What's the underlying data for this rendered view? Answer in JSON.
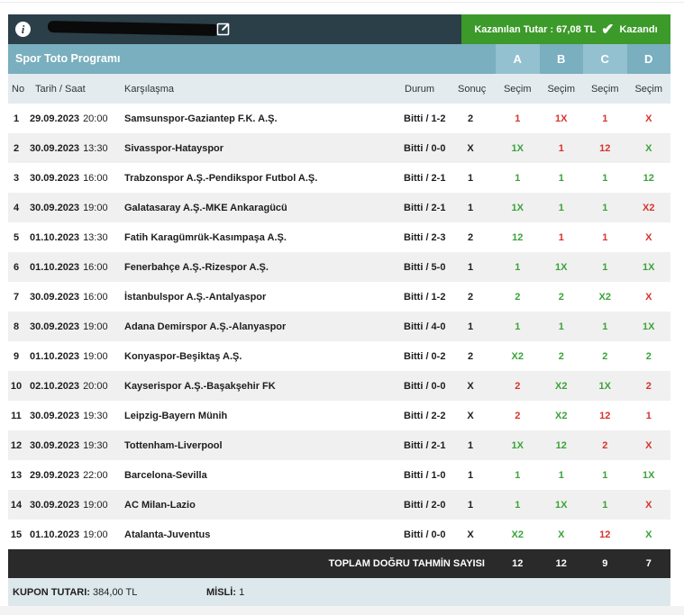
{
  "header": {
    "win_label": "Kazanılan Tutar : 67,08 TL",
    "win_status": "Kazandı",
    "colors": {
      "dark": "#2b3f48",
      "win": "#3c9a2a",
      "program": "#79afbe"
    }
  },
  "program": {
    "title": "Spor Toto Programı",
    "choices": [
      "A",
      "B",
      "C",
      "D"
    ]
  },
  "columns": {
    "no": "No",
    "date": "Tarih / Saat",
    "match": "Karşılaşma",
    "status": "Durum",
    "result": "Sonuç",
    "pick": "Seçim"
  },
  "rows": [
    {
      "no": "1",
      "date": "29.09.2023",
      "time": "20:00",
      "match": "Samsunspor-Gaziantep F.K. A.Ş.",
      "status": "Bitti / 1-2",
      "result": "2",
      "picks": [
        {
          "v": "1",
          "c": "red"
        },
        {
          "v": "1X",
          "c": "red"
        },
        {
          "v": "1",
          "c": "red"
        },
        {
          "v": "X",
          "c": "red"
        }
      ]
    },
    {
      "no": "2",
      "date": "30.09.2023",
      "time": "13:30",
      "match": "Sivasspor-Hatayspor",
      "status": "Bitti / 0-0",
      "result": "X",
      "picks": [
        {
          "v": "1X",
          "c": "green"
        },
        {
          "v": "1",
          "c": "red"
        },
        {
          "v": "12",
          "c": "red"
        },
        {
          "v": "X",
          "c": "green"
        }
      ]
    },
    {
      "no": "3",
      "date": "30.09.2023",
      "time": "16:00",
      "match": "Trabzonspor A.Ş.-Pendikspor Futbol A.Ş.",
      "status": "Bitti / 2-1",
      "result": "1",
      "picks": [
        {
          "v": "1",
          "c": "green"
        },
        {
          "v": "1",
          "c": "green"
        },
        {
          "v": "1",
          "c": "green"
        },
        {
          "v": "12",
          "c": "green"
        }
      ]
    },
    {
      "no": "4",
      "date": "30.09.2023",
      "time": "19:00",
      "match": "Galatasaray A.Ş.-MKE Ankaragücü",
      "status": "Bitti / 2-1",
      "result": "1",
      "picks": [
        {
          "v": "1X",
          "c": "green"
        },
        {
          "v": "1",
          "c": "green"
        },
        {
          "v": "1",
          "c": "green"
        },
        {
          "v": "X2",
          "c": "red"
        }
      ]
    },
    {
      "no": "5",
      "date": "01.10.2023",
      "time": "13:30",
      "match": "Fatih Karagümrük-Kasımpaşa A.Ş.",
      "status": "Bitti / 2-3",
      "result": "2",
      "picks": [
        {
          "v": "12",
          "c": "green"
        },
        {
          "v": "1",
          "c": "red"
        },
        {
          "v": "1",
          "c": "red"
        },
        {
          "v": "X",
          "c": "red"
        }
      ]
    },
    {
      "no": "6",
      "date": "01.10.2023",
      "time": "16:00",
      "match": "Fenerbahçe A.Ş.-Rizespor A.Ş.",
      "status": "Bitti / 5-0",
      "result": "1",
      "picks": [
        {
          "v": "1",
          "c": "green"
        },
        {
          "v": "1X",
          "c": "green"
        },
        {
          "v": "1",
          "c": "green"
        },
        {
          "v": "1X",
          "c": "green"
        }
      ]
    },
    {
      "no": "7",
      "date": "30.09.2023",
      "time": "16:00",
      "match": "İstanbulspor A.Ş.-Antalyaspor",
      "status": "Bitti / 1-2",
      "result": "2",
      "picks": [
        {
          "v": "2",
          "c": "green"
        },
        {
          "v": "2",
          "c": "green"
        },
        {
          "v": "X2",
          "c": "green"
        },
        {
          "v": "X",
          "c": "red"
        }
      ]
    },
    {
      "no": "8",
      "date": "30.09.2023",
      "time": "19:00",
      "match": "Adana Demirspor A.Ş.-Alanyaspor",
      "status": "Bitti / 4-0",
      "result": "1",
      "picks": [
        {
          "v": "1",
          "c": "green"
        },
        {
          "v": "1",
          "c": "green"
        },
        {
          "v": "1",
          "c": "green"
        },
        {
          "v": "1X",
          "c": "green"
        }
      ]
    },
    {
      "no": "9",
      "date": "01.10.2023",
      "time": "19:00",
      "match": "Konyaspor-Beşiktaş A.Ş.",
      "status": "Bitti / 0-2",
      "result": "2",
      "picks": [
        {
          "v": "X2",
          "c": "green"
        },
        {
          "v": "2",
          "c": "green"
        },
        {
          "v": "2",
          "c": "green"
        },
        {
          "v": "2",
          "c": "green"
        }
      ]
    },
    {
      "no": "10",
      "date": "02.10.2023",
      "time": "20:00",
      "match": "Kayserispor A.Ş.-Başakşehir FK",
      "status": "Bitti / 0-0",
      "result": "X",
      "picks": [
        {
          "v": "2",
          "c": "red"
        },
        {
          "v": "X2",
          "c": "green"
        },
        {
          "v": "1X",
          "c": "green"
        },
        {
          "v": "2",
          "c": "red"
        }
      ]
    },
    {
      "no": "11",
      "date": "30.09.2023",
      "time": "19:30",
      "match": "Leipzig-Bayern Münih",
      "status": "Bitti / 2-2",
      "result": "X",
      "picks": [
        {
          "v": "2",
          "c": "red"
        },
        {
          "v": "X2",
          "c": "green"
        },
        {
          "v": "12",
          "c": "red"
        },
        {
          "v": "1",
          "c": "red"
        }
      ]
    },
    {
      "no": "12",
      "date": "30.09.2023",
      "time": "19:30",
      "match": "Tottenham-Liverpool",
      "status": "Bitti / 2-1",
      "result": "1",
      "picks": [
        {
          "v": "1X",
          "c": "green"
        },
        {
          "v": "12",
          "c": "green"
        },
        {
          "v": "2",
          "c": "red"
        },
        {
          "v": "X",
          "c": "red"
        }
      ]
    },
    {
      "no": "13",
      "date": "29.09.2023",
      "time": "22:00",
      "match": "Barcelona-Sevilla",
      "status": "Bitti / 1-0",
      "result": "1",
      "picks": [
        {
          "v": "1",
          "c": "green"
        },
        {
          "v": "1",
          "c": "green"
        },
        {
          "v": "1",
          "c": "green"
        },
        {
          "v": "1X",
          "c": "green"
        }
      ]
    },
    {
      "no": "14",
      "date": "30.09.2023",
      "time": "19:00",
      "match": "AC Milan-Lazio",
      "status": "Bitti / 2-0",
      "result": "1",
      "picks": [
        {
          "v": "1",
          "c": "green"
        },
        {
          "v": "1X",
          "c": "green"
        },
        {
          "v": "1",
          "c": "green"
        },
        {
          "v": "X",
          "c": "red"
        }
      ]
    },
    {
      "no": "15",
      "date": "01.10.2023",
      "time": "19:00",
      "match": "Atalanta-Juventus",
      "status": "Bitti / 0-0",
      "result": "X",
      "picks": [
        {
          "v": "X2",
          "c": "green"
        },
        {
          "v": "X",
          "c": "green"
        },
        {
          "v": "12",
          "c": "red"
        },
        {
          "v": "X",
          "c": "green"
        }
      ]
    }
  ],
  "totals": {
    "label": "TOPLAM DOĞRU TAHMİN SAYISI",
    "values": [
      "12",
      "12",
      "9",
      "7"
    ]
  },
  "footer": {
    "kupon_label": "KUPON TUTARI:",
    "kupon_value": "384,00 TL",
    "misli_label": "MİSLİ:",
    "misli_value": "1"
  }
}
